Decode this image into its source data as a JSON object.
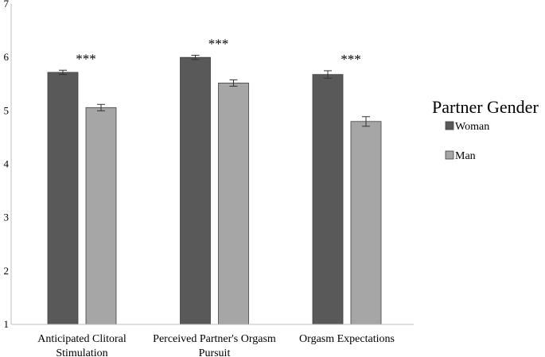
{
  "chart_data": {
    "type": "bar",
    "categories": [
      [
        "Anticipated Clitoral",
        "Stimulation"
      ],
      [
        "Perceived Partner's Orgasm",
        "Pursuit"
      ],
      [
        "Orgasm Expectations"
      ]
    ],
    "series": [
      {
        "name": "Woman",
        "color": "#595959",
        "values": [
          5.72,
          6.0,
          5.68
        ],
        "errors": [
          0.04,
          0.04,
          0.07
        ]
      },
      {
        "name": "Man",
        "color": "#a6a6a6",
        "values": [
          5.06,
          5.52,
          4.8
        ],
        "errors": [
          0.06,
          0.06,
          0.09
        ]
      }
    ],
    "significance": [
      "***",
      "***",
      "***"
    ],
    "ylim": [
      1,
      7
    ],
    "yticks": [
      1,
      2,
      3,
      4,
      5,
      6,
      7
    ],
    "legend": {
      "title": "Partner Gender",
      "placement": "right"
    },
    "grid": false
  }
}
